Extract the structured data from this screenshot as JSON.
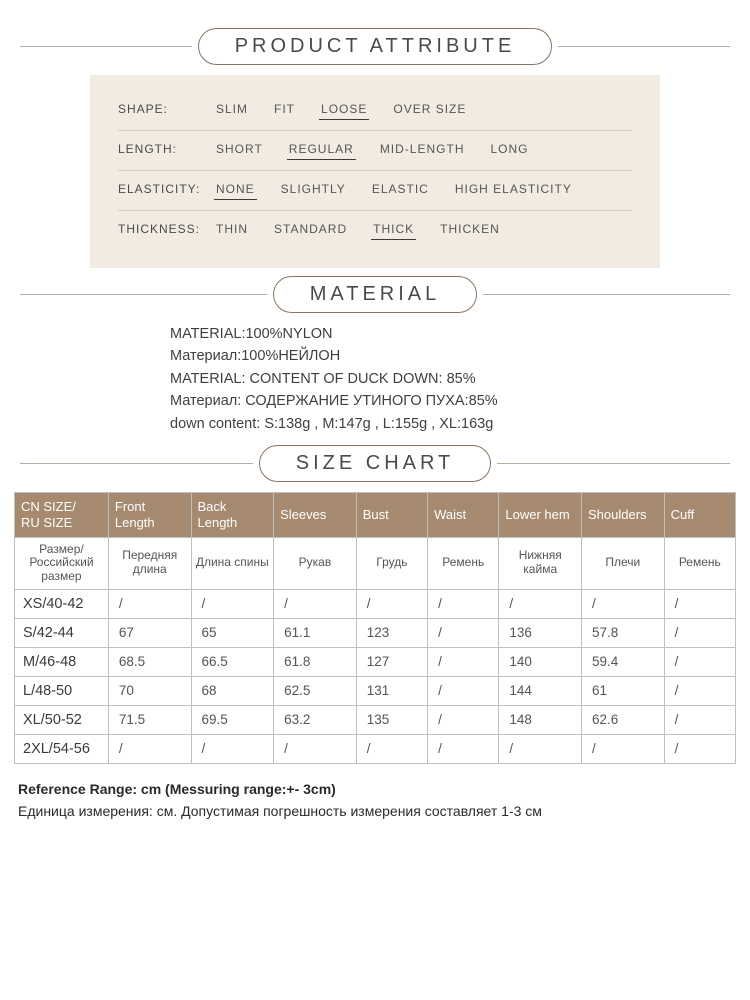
{
  "colors": {
    "background": "#ffffff",
    "attr_box_bg": "#f2ebe1",
    "heading_border": "#8a7460",
    "rule": "#9a8a7a",
    "table_header_bg": "#a58a6f",
    "table_header_fg": "#ffffff",
    "table_border": "#bfbfbf",
    "text": "#3a3a3a"
  },
  "headings": {
    "product_attribute": "PRODUCT ATTRIBUTE",
    "material": "MATERIAL",
    "size_chart": "SIZE CHART"
  },
  "attributes": {
    "shape": {
      "label": "SHAPE:",
      "selected": "LOOSE",
      "options": [
        "SLIM",
        "FIT",
        "LOOSE",
        "OVER SIZE"
      ]
    },
    "length": {
      "label": "LENGTH:",
      "selected": "REGULAR",
      "options": [
        "SHORT",
        "REGULAR",
        "MID-LENGTH",
        "LONG"
      ]
    },
    "elasticity": {
      "label": "ELASTICITY:",
      "selected": "NONE",
      "options": [
        "NONE",
        "SLIGHTLY",
        "ELASTIC",
        "HIGH ELASTICITY"
      ]
    },
    "thickness": {
      "label": "THICKNESS:",
      "selected": "THICK",
      "options": [
        "THIN",
        "STANDARD",
        "THICK",
        "THICKEN"
      ]
    }
  },
  "material": {
    "l1": "MATERIAL:100%NYLON",
    "l2": "Материал:100%НЕЙЛОН",
    "l3": "MATERIAL:  CONTENT OF DUCK DOWN: 85%",
    "l4": "Материал: СОДЕРЖАНИЕ УТИНОГО ПУХА:85%",
    "l5": "down content: S:138g , M:147g , L:155g , XL:163g"
  },
  "size_chart": {
    "headers_en": [
      "CN SIZE/\nRU SIZE",
      "Front Length",
      "Back Length",
      "Sleeves",
      "Bust",
      "Waist",
      "Lower hem",
      "Shoulders",
      "Cuff"
    ],
    "headers_ru": [
      "Размер/\nРоссийский размер",
      "Передняя длина",
      "Длина спины",
      "Рукав",
      "Грудь",
      "Ремень",
      "Нижняя кайма",
      "Плечи",
      "Ремень"
    ],
    "rows": [
      {
        "size": "XS/40-42",
        "vals": [
          "/",
          "/",
          "/",
          "/",
          "/",
          "/",
          "/",
          "/"
        ]
      },
      {
        "size": "S/42-44",
        "vals": [
          "67",
          "65",
          "61.1",
          "123",
          "/",
          "136",
          "57.8",
          "/"
        ]
      },
      {
        "size": "M/46-48",
        "vals": [
          "68.5",
          "66.5",
          "61.8",
          "127",
          "/",
          "140",
          "59.4",
          "/"
        ]
      },
      {
        "size": "L/48-50",
        "vals": [
          "70",
          "68",
          "62.5",
          "131",
          "/",
          "144",
          "61",
          "/"
        ]
      },
      {
        "size": "XL/50-52",
        "vals": [
          "71.5",
          "69.5",
          "63.2",
          "135",
          "/",
          "148",
          "62.6",
          "/"
        ]
      },
      {
        "size": "2XL/54-56",
        "vals": [
          "/",
          "/",
          "/",
          "/",
          "/",
          "/",
          "/",
          "/"
        ]
      }
    ]
  },
  "footnote": {
    "en": "Reference Range: cm (Messuring range:+- 3cm)",
    "ru": "Единица измерения: см. Допустимая погрешность измерения составляет 1-3 см"
  }
}
